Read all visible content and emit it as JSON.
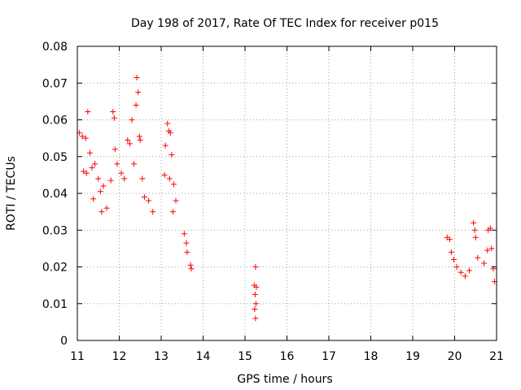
{
  "chart_data": {
    "type": "scatter",
    "title": "Day 198 of 2017, Rate Of TEC Index for receiver p015",
    "xlabel": "GPS time / hours",
    "ylabel": "ROTI / TECUs",
    "xlim": [
      11,
      21
    ],
    "ylim": [
      0,
      0.08
    ],
    "xticks": [
      "11",
      "12",
      "13",
      "14",
      "15",
      "16",
      "17",
      "18",
      "19",
      "20",
      "21"
    ],
    "yticks": [
      "0",
      "0.01",
      "0.02",
      "0.03",
      "0.04",
      "0.05",
      "0.06",
      "0.07",
      "0.08"
    ],
    "grid": true,
    "marker": "+",
    "color": "#ff0000",
    "series": [
      {
        "name": "ROTI",
        "points": [
          [
            11.05,
            0.0565
          ],
          [
            11.12,
            0.0555
          ],
          [
            11.2,
            0.055
          ],
          [
            11.25,
            0.0622
          ],
          [
            11.3,
            0.051
          ],
          [
            11.15,
            0.046
          ],
          [
            11.22,
            0.0455
          ],
          [
            11.35,
            0.047
          ],
          [
            11.42,
            0.048
          ],
          [
            11.5,
            0.044
          ],
          [
            11.38,
            0.0385
          ],
          [
            11.55,
            0.0405
          ],
          [
            11.62,
            0.042
          ],
          [
            11.7,
            0.036
          ],
          [
            11.58,
            0.035
          ],
          [
            11.85,
            0.0622
          ],
          [
            11.88,
            0.0605
          ],
          [
            11.9,
            0.052
          ],
          [
            11.95,
            0.048
          ],
          [
            11.8,
            0.0435
          ],
          [
            12.05,
            0.0455
          ],
          [
            12.12,
            0.044
          ],
          [
            12.2,
            0.0545
          ],
          [
            12.25,
            0.0535
          ],
          [
            12.3,
            0.06
          ],
          [
            12.35,
            0.048
          ],
          [
            12.42,
            0.0715
          ],
          [
            12.45,
            0.0675
          ],
          [
            12.4,
            0.064
          ],
          [
            12.48,
            0.0555
          ],
          [
            12.5,
            0.0545
          ],
          [
            12.55,
            0.044
          ],
          [
            12.6,
            0.039
          ],
          [
            12.7,
            0.038
          ],
          [
            12.8,
            0.035
          ],
          [
            13.15,
            0.059
          ],
          [
            13.18,
            0.057
          ],
          [
            13.22,
            0.0565
          ],
          [
            13.1,
            0.053
          ],
          [
            13.25,
            0.0505
          ],
          [
            13.08,
            0.045
          ],
          [
            13.2,
            0.044
          ],
          [
            13.3,
            0.0425
          ],
          [
            13.35,
            0.038
          ],
          [
            13.28,
            0.035
          ],
          [
            13.55,
            0.029
          ],
          [
            13.6,
            0.0265
          ],
          [
            13.62,
            0.024
          ],
          [
            13.7,
            0.0205
          ],
          [
            13.72,
            0.0195
          ],
          [
            15.25,
            0.02
          ],
          [
            15.22,
            0.015
          ],
          [
            15.27,
            0.0145
          ],
          [
            15.24,
            0.0125
          ],
          [
            15.26,
            0.01
          ],
          [
            15.23,
            0.0085
          ],
          [
            15.25,
            0.006
          ],
          [
            19.82,
            0.028
          ],
          [
            19.88,
            0.0275
          ],
          [
            19.92,
            0.024
          ],
          [
            19.98,
            0.022
          ],
          [
            20.05,
            0.02
          ],
          [
            20.15,
            0.0185
          ],
          [
            20.25,
            0.0175
          ],
          [
            20.35,
            0.019
          ],
          [
            20.45,
            0.032
          ],
          [
            20.48,
            0.03
          ],
          [
            20.5,
            0.028
          ],
          [
            20.55,
            0.0225
          ],
          [
            20.7,
            0.021
          ],
          [
            20.78,
            0.0245
          ],
          [
            20.8,
            0.03
          ],
          [
            20.85,
            0.0305
          ],
          [
            20.88,
            0.025
          ],
          [
            20.92,
            0.0195
          ],
          [
            20.95,
            0.016
          ]
        ]
      }
    ]
  }
}
